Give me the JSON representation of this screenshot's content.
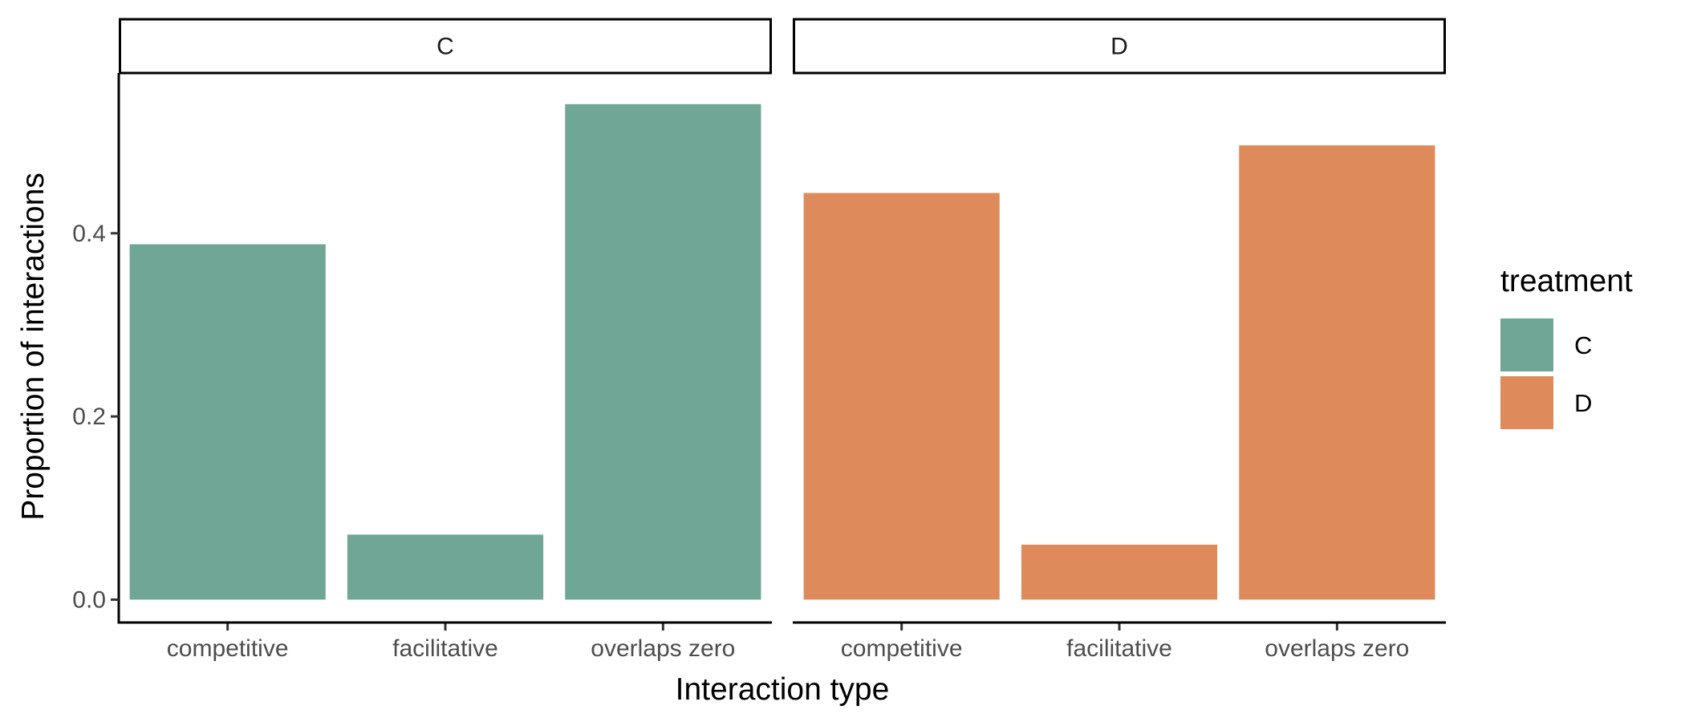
{
  "chart_data": {
    "type": "bar",
    "categories": [
      "competitive",
      "facilitative",
      "overlaps zero"
    ],
    "panels": [
      {
        "strip_label": "C",
        "values": [
          0.388,
          0.071,
          0.541
        ],
        "color": "#70A695"
      },
      {
        "strip_label": "D",
        "values": [
          0.444,
          0.06,
          0.496
        ],
        "color": "#DE8A5A"
      }
    ],
    "xlabel": "Interaction type",
    "ylabel": "Proportion of interactions",
    "ylim": [
      -0.025,
      0.575
    ],
    "yticks": [
      0.0,
      0.2,
      0.4
    ],
    "ytick_labels": [
      "0.0",
      "0.2",
      "0.4"
    ],
    "legend": {
      "title": "treatment",
      "position": "right",
      "entries": [
        {
          "label": "C",
          "color": "#70A695"
        },
        {
          "label": "D",
          "color": "#DE8A5A"
        }
      ]
    },
    "grid": false
  }
}
